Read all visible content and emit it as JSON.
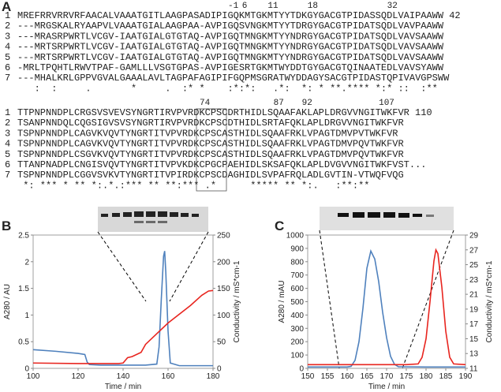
{
  "panel_labels": [
    "A",
    "B",
    "C"
  ],
  "alignment": {
    "blocks": [
      {
        "positions": [
          "-1",
          "6",
          "11",
          "18",
          "32"
        ],
        "rows": [
          {
            "id": "1",
            "seq": "MREFRRVRRVRFAACALVAAATGITLAAGPASADIPIGQKMTGKMTYYTDKGYGACGTPIDASSQDLVAIPAAWW",
            "end": "42"
          },
          {
            "id": "2",
            "seq": "---MRGSKALRYAAPVLVAAATGIALAAGPAA-AVPIGQSVNGKMTYYTDRGYGACGTPIDATSQDLVAVPAAWW"
          },
          {
            "id": "3",
            "seq": "---MRASRPWRTLVCGV-IAATGIALGTGTAQ-AVPIGQTMNGKMTYYNDRGYGACGTPIDATSQDLVAVSAAWW"
          },
          {
            "id": "4",
            "seq": "---MRTSRPWRTLVCGV-IAATGIALGTGTAQ-AVPIGQTMNGKMTYYNDRGYGACGTPIDATSQDLVAVSAAWW"
          },
          {
            "id": "5",
            "seq": "---MRTSRPWRTLVCGV-IAATGIALGTGTAQ-AVPIGQTMNGKMTYYNDRGYGACGTPIDATSQDLVAVSAAWW"
          },
          {
            "id": "6",
            "seq": "-MRLTPQHTLRWVTPAF-GAMLLLVSGTGPAS-AVPIGESRTGKMTWYDDTGYGACGTQINAATEDLVAVSYAWW"
          },
          {
            "id": "7",
            "seq": "---MHALKRLGPPVGVALGAAALAVLTAGPAFAGIPIFGQPMSGRATWYDDAGYSACGTPIDASTQPIVAVGPSWW"
          }
        ],
        "consensus": "   :  :     .       *     .  :* *    :*:*:   .*:  *: * **.**** *:* ::  :**"
      },
      {
        "positions": [
          "74",
          "87",
          "92",
          "107"
        ],
        "rows": [
          {
            "id": "1",
            "seq": "TTPNPNNDPLCRGSVSVEVSYNGRTIRVPVRDKCPSCDRTHIDLSQAAFAKLAPLDRGVVNGITWKFVR",
            "end": "110"
          },
          {
            "id": "2",
            "seq": "TSANPNNDQLCQGSIGVSVSYNGRTIRVPVRDKCPSCDTHIDLSRTAFQKLAPLDRGVVNGITWKFVR"
          },
          {
            "id": "3",
            "seq": "TSPNPNNDPLCAGVKVQVTYNGRTITVPVRDKCPSCASTHIDLSQAAFRKLVPAGTDMVPVTWKFVR"
          },
          {
            "id": "4",
            "seq": "TSPNPNNDPLCAGVKVQVTYNGRTITVPVRDKCPSCASTHIDLSQAAFRKLVPAGTDMVPQVTWKFVR"
          },
          {
            "id": "5",
            "seq": "TSPNPNNDPLCSGVKVQVTYNGRTITVPVRDKCPSCASTHIDLSQAAFRKLVPAGTDMVPQVTWKFVR"
          },
          {
            "id": "6",
            "seq": "TTANPNADPLCNGISVQVTYNGRTITVPVKDKCPGCPAEHIDLSKSAFQKLAPLDVGVVNGITWKFVST..."
          },
          {
            "id": "7",
            "seq": "TSPNPNNDPLCGGVSVKVTYNGRTITVPIRDKCPSCDAGHIDLSVPAFRQLADLGVTIN-VTWQFVQG"
          }
        ],
        "consensus": " *: *** * ** *:.*.:*** ** **:*** .*      ***** ** *:.   :**:**"
      }
    ]
  },
  "chart_data": [
    {
      "type": "line",
      "x_label": "Time / min",
      "y_label": "A280 / AU",
      "y2_label": "Conductivity / mS*cm-1",
      "xlim": [
        100,
        180
      ],
      "xticks": [
        100,
        120,
        140,
        160,
        180
      ],
      "ylim": [
        0,
        2.5
      ],
      "yticks": [
        0,
        0.5,
        1,
        1.5,
        2,
        2.5
      ],
      "y2lim": [
        0,
        250
      ],
      "y2ticks": [
        0,
        50,
        100,
        150,
        200,
        250
      ],
      "series": [
        {
          "color": "#4f81bd",
          "x": [
            100,
            110,
            120,
            123,
            124,
            125,
            130,
            140,
            150,
            155,
            156,
            157,
            158,
            158.5,
            159,
            160,
            161,
            165,
            170,
            180
          ],
          "values": [
            0.35,
            0.32,
            0.28,
            0.26,
            0.12,
            0.07,
            0.06,
            0.06,
            0.06,
            0.08,
            0.4,
            1.3,
            2.1,
            2.2,
            1.8,
            0.7,
            0.1,
            0.05,
            0.05,
            0.05
          ]
        },
        {
          "color": "#e8251f",
          "axis": "y2",
          "x": [
            100,
            120,
            138,
            140,
            142,
            144,
            148,
            150,
            160,
            170,
            175,
            178,
            180
          ],
          "values": [
            10,
            9,
            9,
            10,
            20,
            22,
            30,
            45,
            85,
            118,
            137,
            145,
            146
          ]
        }
      ]
    },
    {
      "type": "line",
      "x_label": "Time / min",
      "y_label": "A280 / mAU",
      "y2_label": "Conductivity / mS*cm-1",
      "xlim": [
        150,
        190
      ],
      "xticks": [
        150,
        155,
        160,
        165,
        170,
        175,
        180,
        185,
        190
      ],
      "ylim": [
        0,
        1000
      ],
      "yticks": [
        0,
        100,
        200,
        300,
        400,
        500,
        600,
        700,
        800,
        900,
        1000
      ],
      "y2lim": [
        11,
        29
      ],
      "y2ticks": [
        11,
        13,
        15,
        17,
        19,
        21,
        23,
        25,
        27,
        29
      ],
      "series": [
        {
          "color": "#4f81bd",
          "x": [
            150,
            160,
            161,
            162,
            163,
            164,
            165,
            166,
            167,
            168,
            169,
            170,
            171,
            172,
            173,
            180,
            190
          ],
          "values": [
            10,
            10,
            15,
            60,
            200,
            450,
            750,
            880,
            820,
            650,
            420,
            230,
            90,
            30,
            12,
            10,
            10
          ]
        },
        {
          "color": "#e8251f",
          "axis": "y2",
          "x": [
            150,
            175,
            178,
            179,
            180,
            181,
            182,
            182.5,
            183,
            184,
            185,
            186,
            187,
            190
          ],
          "values": [
            11.5,
            11.5,
            11.6,
            12.5,
            15,
            20,
            25.5,
            27,
            26.5,
            22,
            16,
            12.5,
            11.6,
            11.5
          ]
        }
      ]
    }
  ]
}
